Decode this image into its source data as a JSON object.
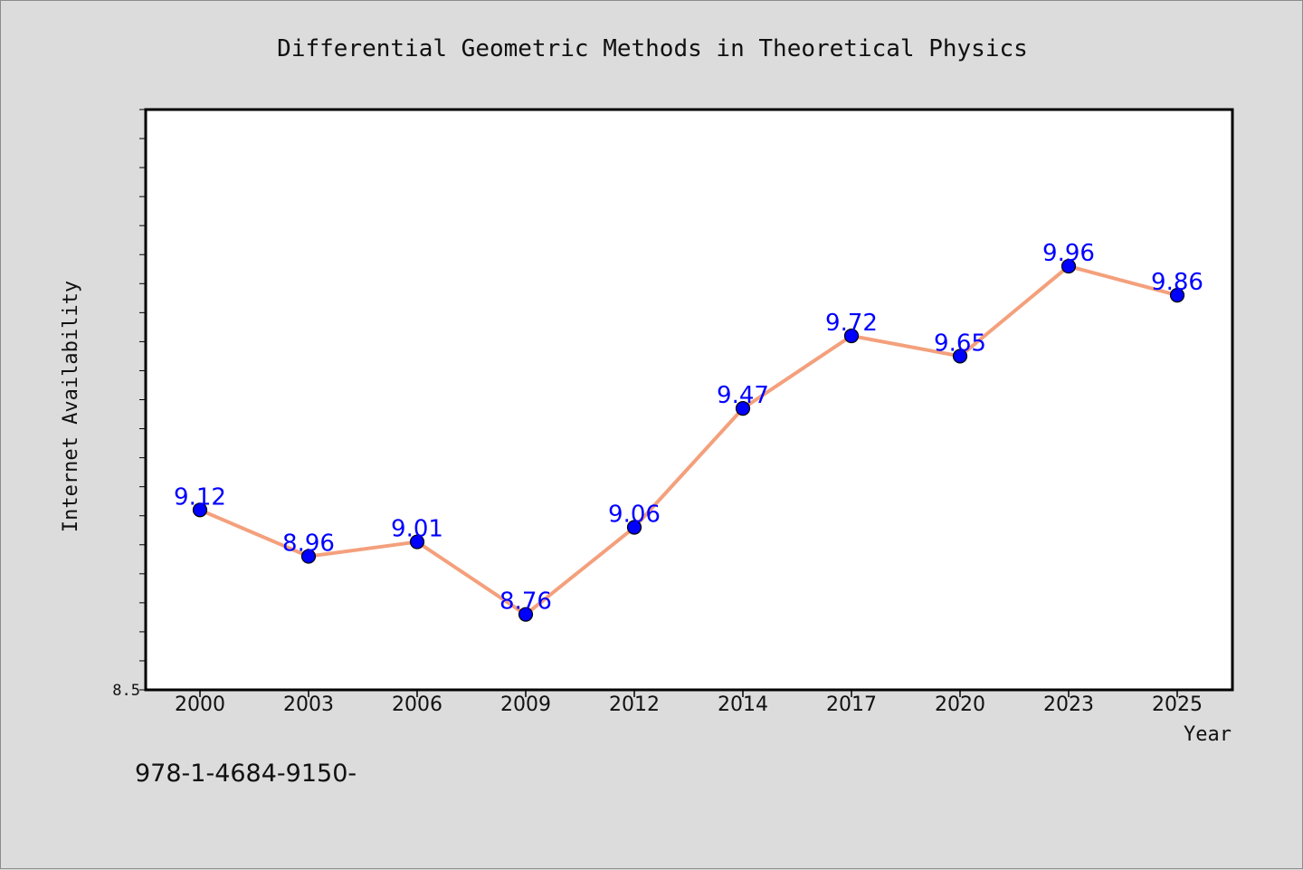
{
  "chart_data": {
    "type": "line",
    "title": "Differential Geometric Methods in Theoretical Physics",
    "xlabel": "Year",
    "ylabel": "Internet Availability",
    "categories": [
      "2000",
      "2003",
      "2006",
      "2009",
      "2012",
      "2014",
      "2017",
      "2020",
      "2023",
      "2025"
    ],
    "series": [
      {
        "values": [
          9.12,
          8.96,
          9.01,
          8.76,
          9.06,
          9.47,
          9.72,
          9.65,
          9.96,
          9.86
        ],
        "labels": [
          "9.12",
          "8.96",
          "9.01",
          "8.76",
          "9.06",
          "9.47",
          "9.72",
          "9.65",
          "9.96",
          "9.86"
        ]
      }
    ],
    "ylim": [
      8.5,
      10.5
    ],
    "yticks_labeled": [
      "8.5"
    ],
    "grid": false,
    "legend": "none",
    "colors": {
      "line": "#f4a07c",
      "marker": "#0000ff",
      "data_label": "#0000ff",
      "plot_background": "#ffffff",
      "page_background": "#dcdcdc"
    }
  },
  "footer": {
    "text": "978-1-4684-9150-"
  }
}
